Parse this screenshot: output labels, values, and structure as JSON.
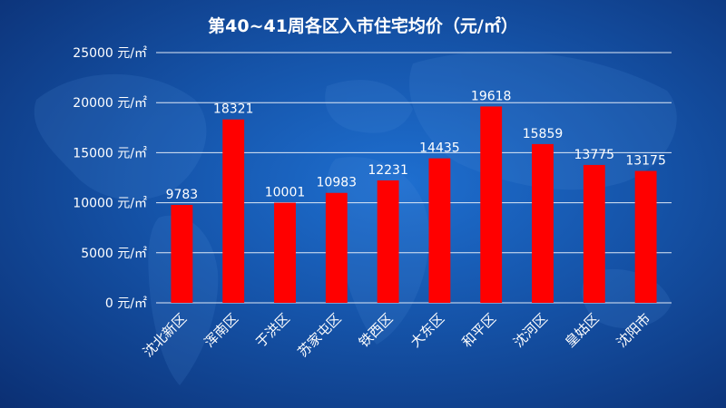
{
  "chart_data": {
    "type": "bar",
    "title": "第40~41周各区入市住宅均价（元/㎡）",
    "categories": [
      "沈北新区",
      "浑南区",
      "于洪区",
      "苏家屯区",
      "铁西区",
      "大东区",
      "和平区",
      "沈河区",
      "皇姑区",
      "沈阳市"
    ],
    "values": [
      9783,
      18321,
      10001,
      10983,
      12231,
      14435,
      19618,
      15859,
      13775,
      13175
    ],
    "value_labels": [
      "9783",
      "18321",
      "10001",
      "10983",
      "12231",
      "14435",
      "19618",
      "15859",
      "13775",
      "13175"
    ],
    "ylim": [
      0,
      25000
    ],
    "yticks": [
      0,
      5000,
      10000,
      15000,
      20000,
      25000
    ],
    "ytick_labels": [
      "0 元/㎡",
      "5000 元/㎡",
      "10000 元/㎡",
      "15000 元/㎡",
      "20000 元/㎡",
      "25000 元/㎡"
    ],
    "grid": true,
    "legend": "none",
    "colors": {
      "bar": "#ff0000",
      "text": "#ffffff",
      "grid": "#dfe8f5"
    }
  }
}
